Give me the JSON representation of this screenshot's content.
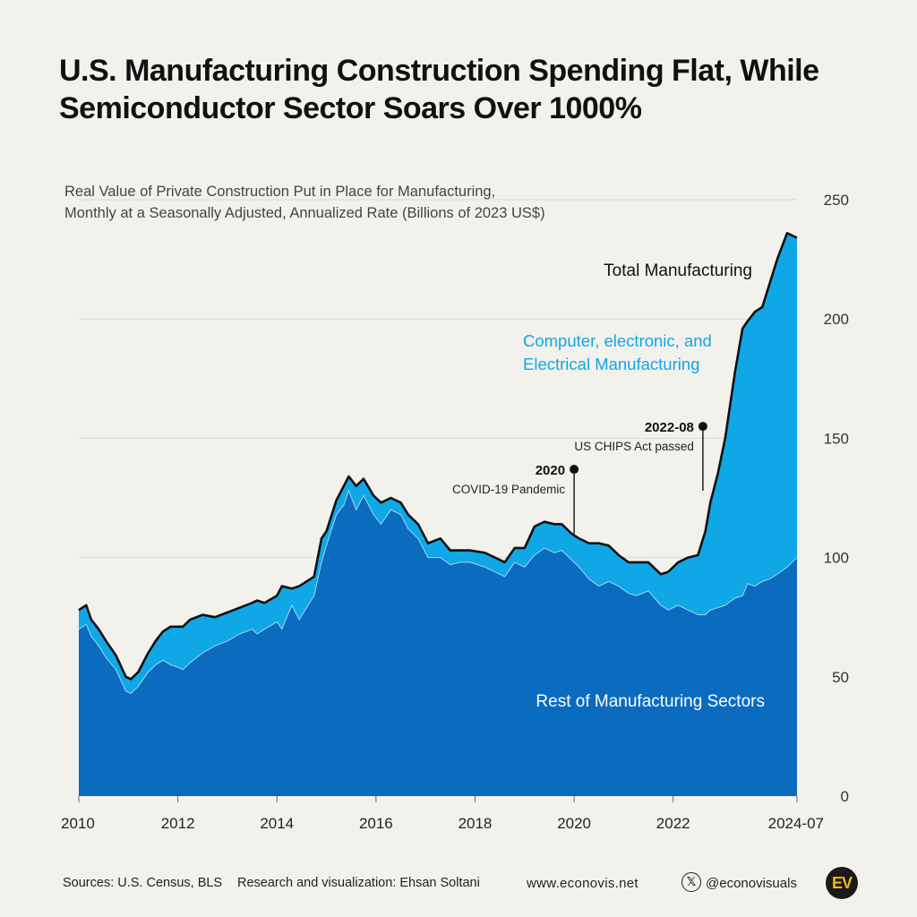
{
  "title": "U.S. Manufacturing Construction Spending Flat, While Semiconductor Sector Soars Over 1000%",
  "subtitle_line1": "Real Value of Private Construction Put in Place for Manufacturing,",
  "subtitle_line2": "Monthly at a Seasonally Adjusted, Annualized Rate (Billions of 2023 US$)",
  "colors": {
    "background": "#f3f1ec",
    "rest": "#0a6bbf",
    "computer": "#0fa7e6",
    "total_line": "#111111",
    "grid": "#d9d6cf"
  },
  "footer": {
    "sources": "Sources: U.S. Census, BLS",
    "research": "Research and visualization: Ehsan Soltani",
    "website": "www.econovis.net",
    "x_icon": "x-logo-icon",
    "handle": "@econovisuals",
    "logo_text": "EV"
  },
  "chart_data": {
    "type": "area",
    "stacked": true,
    "xlim": [
      2010,
      2024.5
    ],
    "ylim": [
      0,
      250
    ],
    "y_axis_side": "right",
    "grid": true,
    "x_ticks": [
      {
        "value": 2010,
        "label": "2010"
      },
      {
        "value": 2012,
        "label": "2012"
      },
      {
        "value": 2014,
        "label": "2014"
      },
      {
        "value": 2016,
        "label": "2016"
      },
      {
        "value": 2018,
        "label": "2018"
      },
      {
        "value": 2020,
        "label": "2020"
      },
      {
        "value": 2022,
        "label": "2022"
      },
      {
        "value": 2024.5,
        "label": "2024-07"
      }
    ],
    "y_ticks": [
      {
        "value": 0,
        "label": "0"
      },
      {
        "value": 50,
        "label": "50"
      },
      {
        "value": 100,
        "label": "100"
      },
      {
        "value": 150,
        "label": "150"
      },
      {
        "value": 200,
        "label": "200"
      },
      {
        "value": 250,
        "label": "250"
      }
    ],
    "x": [
      2010.0,
      2010.15,
      2010.25,
      2010.4,
      2010.55,
      2010.75,
      2010.95,
      2011.05,
      2011.2,
      2011.4,
      2011.55,
      2011.7,
      2011.85,
      2012.0,
      2012.1,
      2012.25,
      2012.5,
      2012.75,
      2013.0,
      2013.25,
      2013.5,
      2013.6,
      2013.75,
      2014.0,
      2014.1,
      2014.3,
      2014.45,
      2014.6,
      2014.75,
      2014.9,
      2015.0,
      2015.2,
      2015.35,
      2015.45,
      2015.6,
      2015.75,
      2015.95,
      2016.1,
      2016.3,
      2016.5,
      2016.65,
      2016.85,
      2017.05,
      2017.3,
      2017.5,
      2017.7,
      2017.9,
      2018.2,
      2018.4,
      2018.6,
      2018.8,
      2019.0,
      2019.2,
      2019.4,
      2019.6,
      2019.75,
      2019.95,
      2020.1,
      2020.3,
      2020.5,
      2020.7,
      2020.9,
      2021.1,
      2021.25,
      2021.5,
      2021.75,
      2021.9,
      2022.1,
      2022.3,
      2022.5,
      2022.65,
      2022.75,
      2022.9,
      2023.05,
      2023.25,
      2023.4,
      2023.5,
      2023.65,
      2023.8,
      2023.95,
      2024.1,
      2024.3,
      2024.5
    ],
    "series": [
      {
        "name": "Rest of Manufacturing Sectors",
        "values": [
          70,
          72,
          67,
          63,
          58,
          53,
          44,
          43,
          46,
          52,
          55,
          57,
          55,
          54,
          53,
          56,
          60,
          63,
          65,
          68,
          70,
          68,
          70,
          73,
          70,
          80,
          74,
          79,
          84,
          98,
          105,
          118,
          122,
          128,
          120,
          126,
          118,
          114,
          120,
          118,
          112,
          108,
          100,
          100,
          97,
          98,
          98,
          96,
          94,
          92,
          98,
          96,
          101,
          104,
          102,
          103,
          99,
          96,
          91,
          88,
          90,
          88,
          85,
          84,
          86,
          80,
          78,
          80,
          78,
          76,
          76,
          78,
          79,
          80,
          83,
          84,
          89,
          88,
          90,
          91,
          93,
          96,
          100
        ]
      },
      {
        "name": "Computer, electronic, and Electrical Manufacturing",
        "values": [
          8,
          8,
          7,
          7,
          7,
          6,
          6,
          6,
          6,
          8,
          10,
          12,
          16,
          17,
          18,
          18,
          16,
          12,
          12,
          11,
          11,
          14,
          11,
          11,
          18,
          7,
          14,
          11,
          8,
          10,
          6,
          6,
          8,
          6,
          10,
          7,
          8,
          9,
          5,
          5,
          6,
          6,
          6,
          8,
          6,
          5,
          5,
          6,
          6,
          6,
          6,
          8,
          12,
          11,
          12,
          11,
          11,
          12,
          15,
          18,
          15,
          13,
          13,
          14,
          12,
          13,
          16,
          18,
          22,
          25,
          35,
          45,
          56,
          70,
          95,
          112,
          110,
          115,
          115,
          124,
          132,
          140,
          134
        ]
      }
    ],
    "total_line": {
      "name": "Total Manufacturing",
      "values": [
        78,
        80,
        74,
        70,
        65,
        59,
        50,
        49,
        52,
        60,
        65,
        69,
        71,
        71,
        71,
        74,
        76,
        75,
        77,
        79,
        81,
        82,
        81,
        84,
        88,
        87,
        88,
        90,
        92,
        108,
        111,
        124,
        130,
        134,
        130,
        133,
        126,
        123,
        125,
        123,
        118,
        114,
        106,
        108,
        103,
        103,
        103,
        102,
        100,
        98,
        104,
        104,
        113,
        115,
        114,
        114,
        110,
        108,
        106,
        106,
        105,
        101,
        98,
        98,
        98,
        93,
        94,
        98,
        100,
        101,
        111,
        123,
        135,
        150,
        178,
        196,
        199,
        203,
        205,
        215,
        225,
        236,
        234
      ]
    },
    "annotations": [
      {
        "x": 2020.0,
        "y_from": 110,
        "y_to": 137,
        "date": "2020",
        "text": "COVID-19 Pandemic"
      },
      {
        "x": 2022.6,
        "y_from": 128,
        "y_to": 155,
        "date": "2022-08",
        "text": "US CHIPS Act passed"
      }
    ],
    "labels": {
      "total": "Total Manufacturing",
      "computer_line1": "Computer, electronic, and",
      "computer_line2": "Electrical Manufacturing",
      "rest": "Rest of Manufacturing Sectors"
    }
  }
}
